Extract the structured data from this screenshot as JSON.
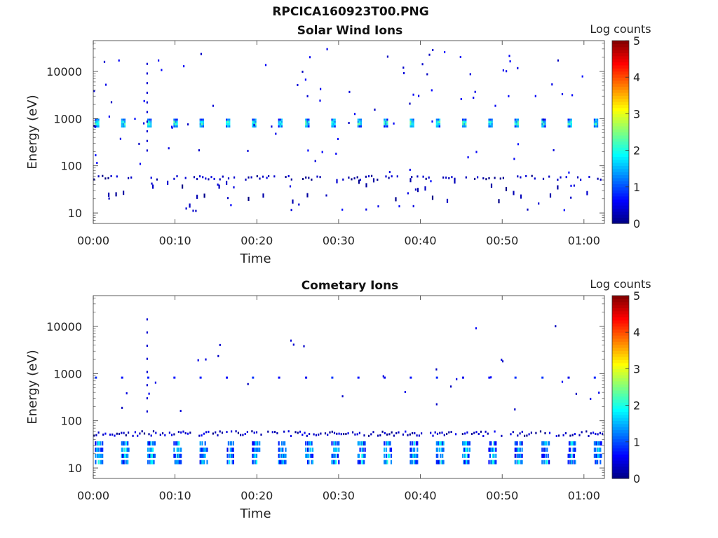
{
  "figure": {
    "title": "RPCICA160923T00.PNG"
  },
  "chart_data": [
    {
      "type": "heatmap",
      "title": "Solar Wind Ions",
      "xlabel": "Time",
      "ylabel": "Energy (eV)",
      "y_scale": "log",
      "xlim_minutes": [
        0,
        62.5
      ],
      "ylim": [
        6,
        45000
      ],
      "x_ticks": [
        "00:00",
        "00:10",
        "00:20",
        "00:30",
        "00:40",
        "00:50",
        "01:00"
      ],
      "y_ticks": [
        "10",
        "100",
        "1000",
        "10000"
      ],
      "colorbar": {
        "label": "Log counts",
        "range": [
          0,
          5
        ],
        "ticks": [
          "0",
          "1",
          "2",
          "3",
          "4",
          "5"
        ],
        "colormap": "jet"
      },
      "bands": [
        {
          "name": "solar-wind-peak",
          "energy_range_eV": [
            650,
            900
          ],
          "typical_log_counts": 2.3,
          "scan_times_minutes": [
            0.2,
            3.4,
            6.6,
            9.8,
            13.0,
            16.2,
            19.4,
            22.6,
            25.9,
            29.1,
            32.3,
            35.5,
            38.7,
            41.9,
            45.1,
            48.3,
            51.5,
            54.8,
            58.0,
            61.2
          ]
        },
        {
          "name": "low-energy-line",
          "energy_range_eV": [
            48,
            60
          ],
          "typical_log_counts": 0.5
        },
        {
          "name": "low-energy-sparse",
          "energy_range_eV": [
            12,
            45
          ],
          "typical_log_counts": 0.4
        }
      ]
    },
    {
      "type": "heatmap",
      "title": "Cometary Ions",
      "xlabel": "Time",
      "ylabel": "Energy (eV)",
      "y_scale": "log",
      "xlim_minutes": [
        0,
        62.5
      ],
      "ylim": [
        6,
        45000
      ],
      "x_ticks": [
        "00:00",
        "00:10",
        "00:20",
        "00:30",
        "00:40",
        "00:50",
        "01:00"
      ],
      "y_ticks": [
        "10",
        "100",
        "1000",
        "10000"
      ],
      "colorbar": {
        "label": "Log counts",
        "range": [
          0,
          5
        ],
        "ticks": [
          "0",
          "1",
          "2",
          "3",
          "4",
          "5"
        ],
        "colormap": "jet"
      },
      "bands": [
        {
          "name": "cometary-low-energy",
          "energy_range_eV": [
            12,
            30
          ],
          "typical_log_counts": 1.2,
          "peak_log_counts": 2.3,
          "scan_times_minutes": [
            0.2,
            3.4,
            6.6,
            9.8,
            13.0,
            16.2,
            19.4,
            22.6,
            25.9,
            29.1,
            32.3,
            35.5,
            38.7,
            41.9,
            45.1,
            48.3,
            51.5,
            54.8,
            58.0,
            61.2
          ]
        },
        {
          "name": "cometary-50eV-line",
          "energy_range_eV": [
            45,
            60
          ],
          "typical_log_counts": 0.6
        },
        {
          "name": "cometary-800eV-dots",
          "energy_range_eV": [
            750,
            900
          ],
          "typical_log_counts": 0.5
        }
      ]
    }
  ]
}
